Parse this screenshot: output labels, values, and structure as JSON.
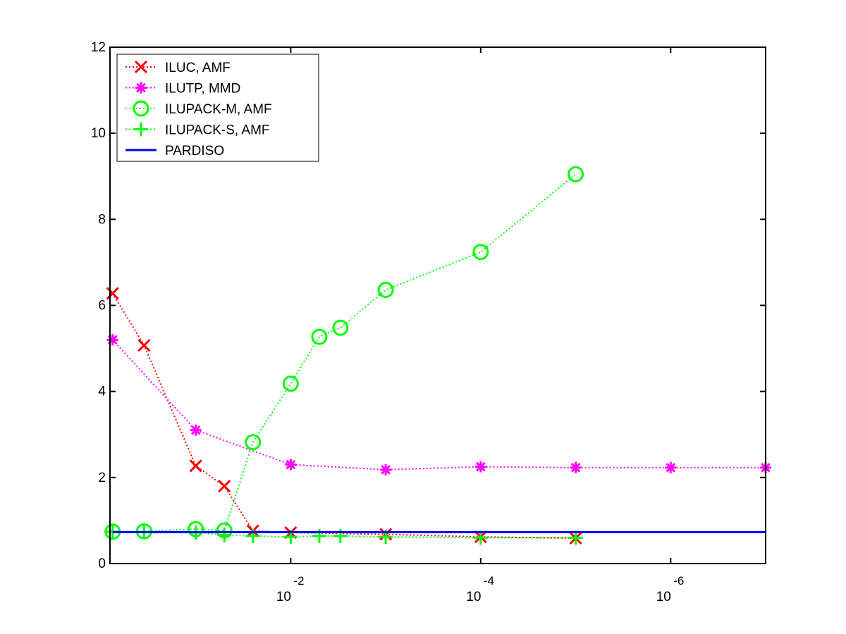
{
  "chart_data": {
    "type": "line",
    "title": "",
    "xlabel": "",
    "ylabel": "",
    "x_scale": "log",
    "x_direction": "decreasing",
    "xlim": [
      0.8,
      1e-07
    ],
    "ylim": [
      0,
      12
    ],
    "grid": false,
    "legend_position": "top-left",
    "x_ticks": [
      {
        "value": 0.01,
        "base": "10",
        "exponent": "-2"
      },
      {
        "value": 0.0001,
        "base": "10",
        "exponent": "-4"
      },
      {
        "value": 1e-06,
        "base": "10",
        "exponent": "-6"
      }
    ],
    "y_ticks": [
      {
        "value": 0,
        "label": "0"
      },
      {
        "value": 2,
        "label": "2"
      },
      {
        "value": 4,
        "label": "4"
      },
      {
        "value": 6,
        "label": "6"
      },
      {
        "value": 8,
        "label": "8"
      },
      {
        "value": 10,
        "label": "10"
      },
      {
        "value": 12,
        "label": "12"
      }
    ],
    "series": [
      {
        "name": "ILUC, AMF",
        "color": "#ff0000",
        "marker": "x",
        "line_style": "dotted",
        "x": [
          0.75,
          0.35,
          0.1,
          0.05,
          0.025,
          0.01,
          0.001,
          0.0001,
          1e-05
        ],
        "y": [
          6.28,
          5.07,
          2.27,
          1.8,
          0.76,
          0.72,
          0.68,
          0.62,
          0.59
        ]
      },
      {
        "name": "ILUTP, MMD",
        "color": "#ff00ff",
        "marker": "star",
        "line_style": "dotted",
        "x": [
          0.75,
          0.1,
          0.01,
          0.001,
          0.0001,
          1e-05,
          1e-06,
          1e-07
        ],
        "y": [
          5.2,
          3.1,
          2.3,
          2.18,
          2.25,
          2.23,
          2.23,
          2.23
        ]
      },
      {
        "name": "ILUPACK-M, AMF",
        "color": "#00ff00",
        "marker": "circle",
        "line_style": "dotted",
        "x": [
          0.75,
          0.35,
          0.1,
          0.05,
          0.025,
          0.01,
          0.005,
          0.003,
          0.001,
          0.0001,
          1e-05
        ],
        "y": [
          0.74,
          0.75,
          0.8,
          0.77,
          2.82,
          4.18,
          5.27,
          5.48,
          6.36,
          7.24,
          9.05
        ]
      },
      {
        "name": "ILUPACK-S, AMF",
        "color": "#00ff00",
        "marker": "plus",
        "line_style": "dotted",
        "x": [
          0.75,
          0.35,
          0.1,
          0.05,
          0.025,
          0.01,
          0.005,
          0.003,
          0.001,
          0.0001,
          1e-05
        ],
        "y": [
          0.74,
          0.73,
          0.72,
          0.66,
          0.64,
          0.62,
          0.64,
          0.64,
          0.62,
          0.6,
          0.6
        ]
      },
      {
        "name": "PARDISO",
        "color": "#0000ff",
        "marker": "none",
        "line_style": "solid",
        "x": [
          0.75,
          1e-07
        ],
        "y": [
          0.73,
          0.73
        ]
      }
    ]
  }
}
